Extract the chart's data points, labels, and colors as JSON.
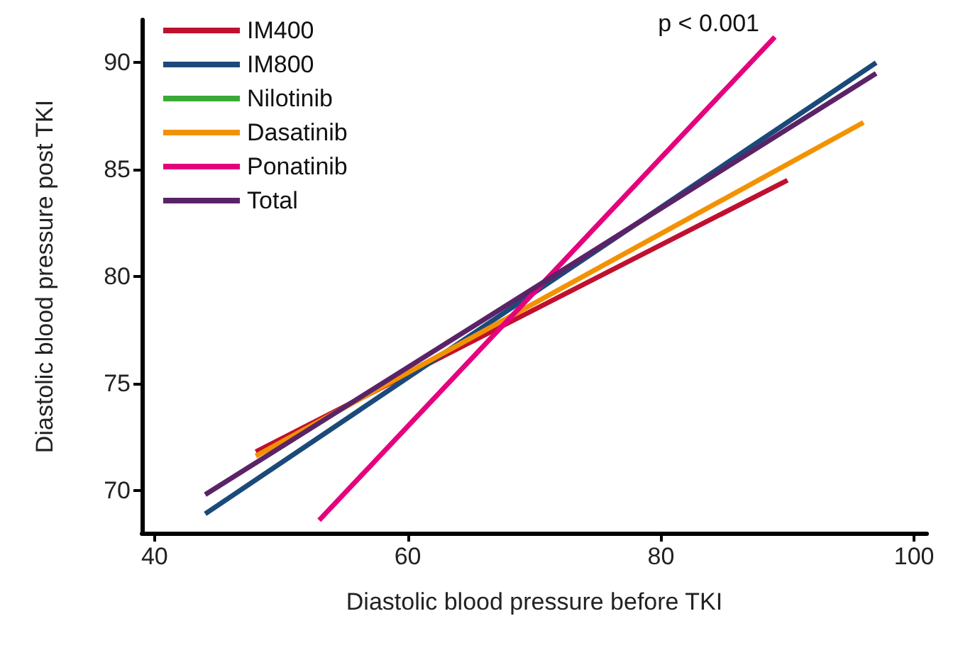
{
  "chart_data": {
    "type": "line",
    "xlabel": "Diastolic blood pressure before TKI",
    "ylabel": "Diastolic blood pressure post TKI",
    "xlim": [
      39,
      101
    ],
    "ylim": [
      68,
      92
    ],
    "xticks": [
      40,
      60,
      80,
      100
    ],
    "yticks": [
      70,
      75,
      80,
      85,
      90
    ],
    "grid": false,
    "legend": "top left",
    "marker": "none",
    "line_style": "solid",
    "annotations": [
      "p < 0.001"
    ],
    "series": [
      {
        "name": "IM400",
        "color": "#c0102f",
        "x": [
          48,
          90
        ],
        "values": [
          71.8,
          84.5
        ]
      },
      {
        "name": "IM800",
        "color": "#1b4a7a",
        "x": [
          44,
          97
        ],
        "values": [
          68.9,
          90.0
        ]
      },
      {
        "name": "Nilotinib",
        "color": "#3aaa35"
      },
      {
        "name": "Dasatinib",
        "color": "#f39200",
        "x": [
          48,
          96
        ],
        "values": [
          71.6,
          87.2
        ]
      },
      {
        "name": "Ponatinib",
        "color": "#e5007e",
        "x": [
          53,
          89
        ],
        "values": [
          68.6,
          91.2
        ]
      },
      {
        "name": "Total",
        "color": "#5b2367",
        "x": [
          44,
          97
        ],
        "values": [
          69.8,
          89.5
        ]
      }
    ]
  }
}
